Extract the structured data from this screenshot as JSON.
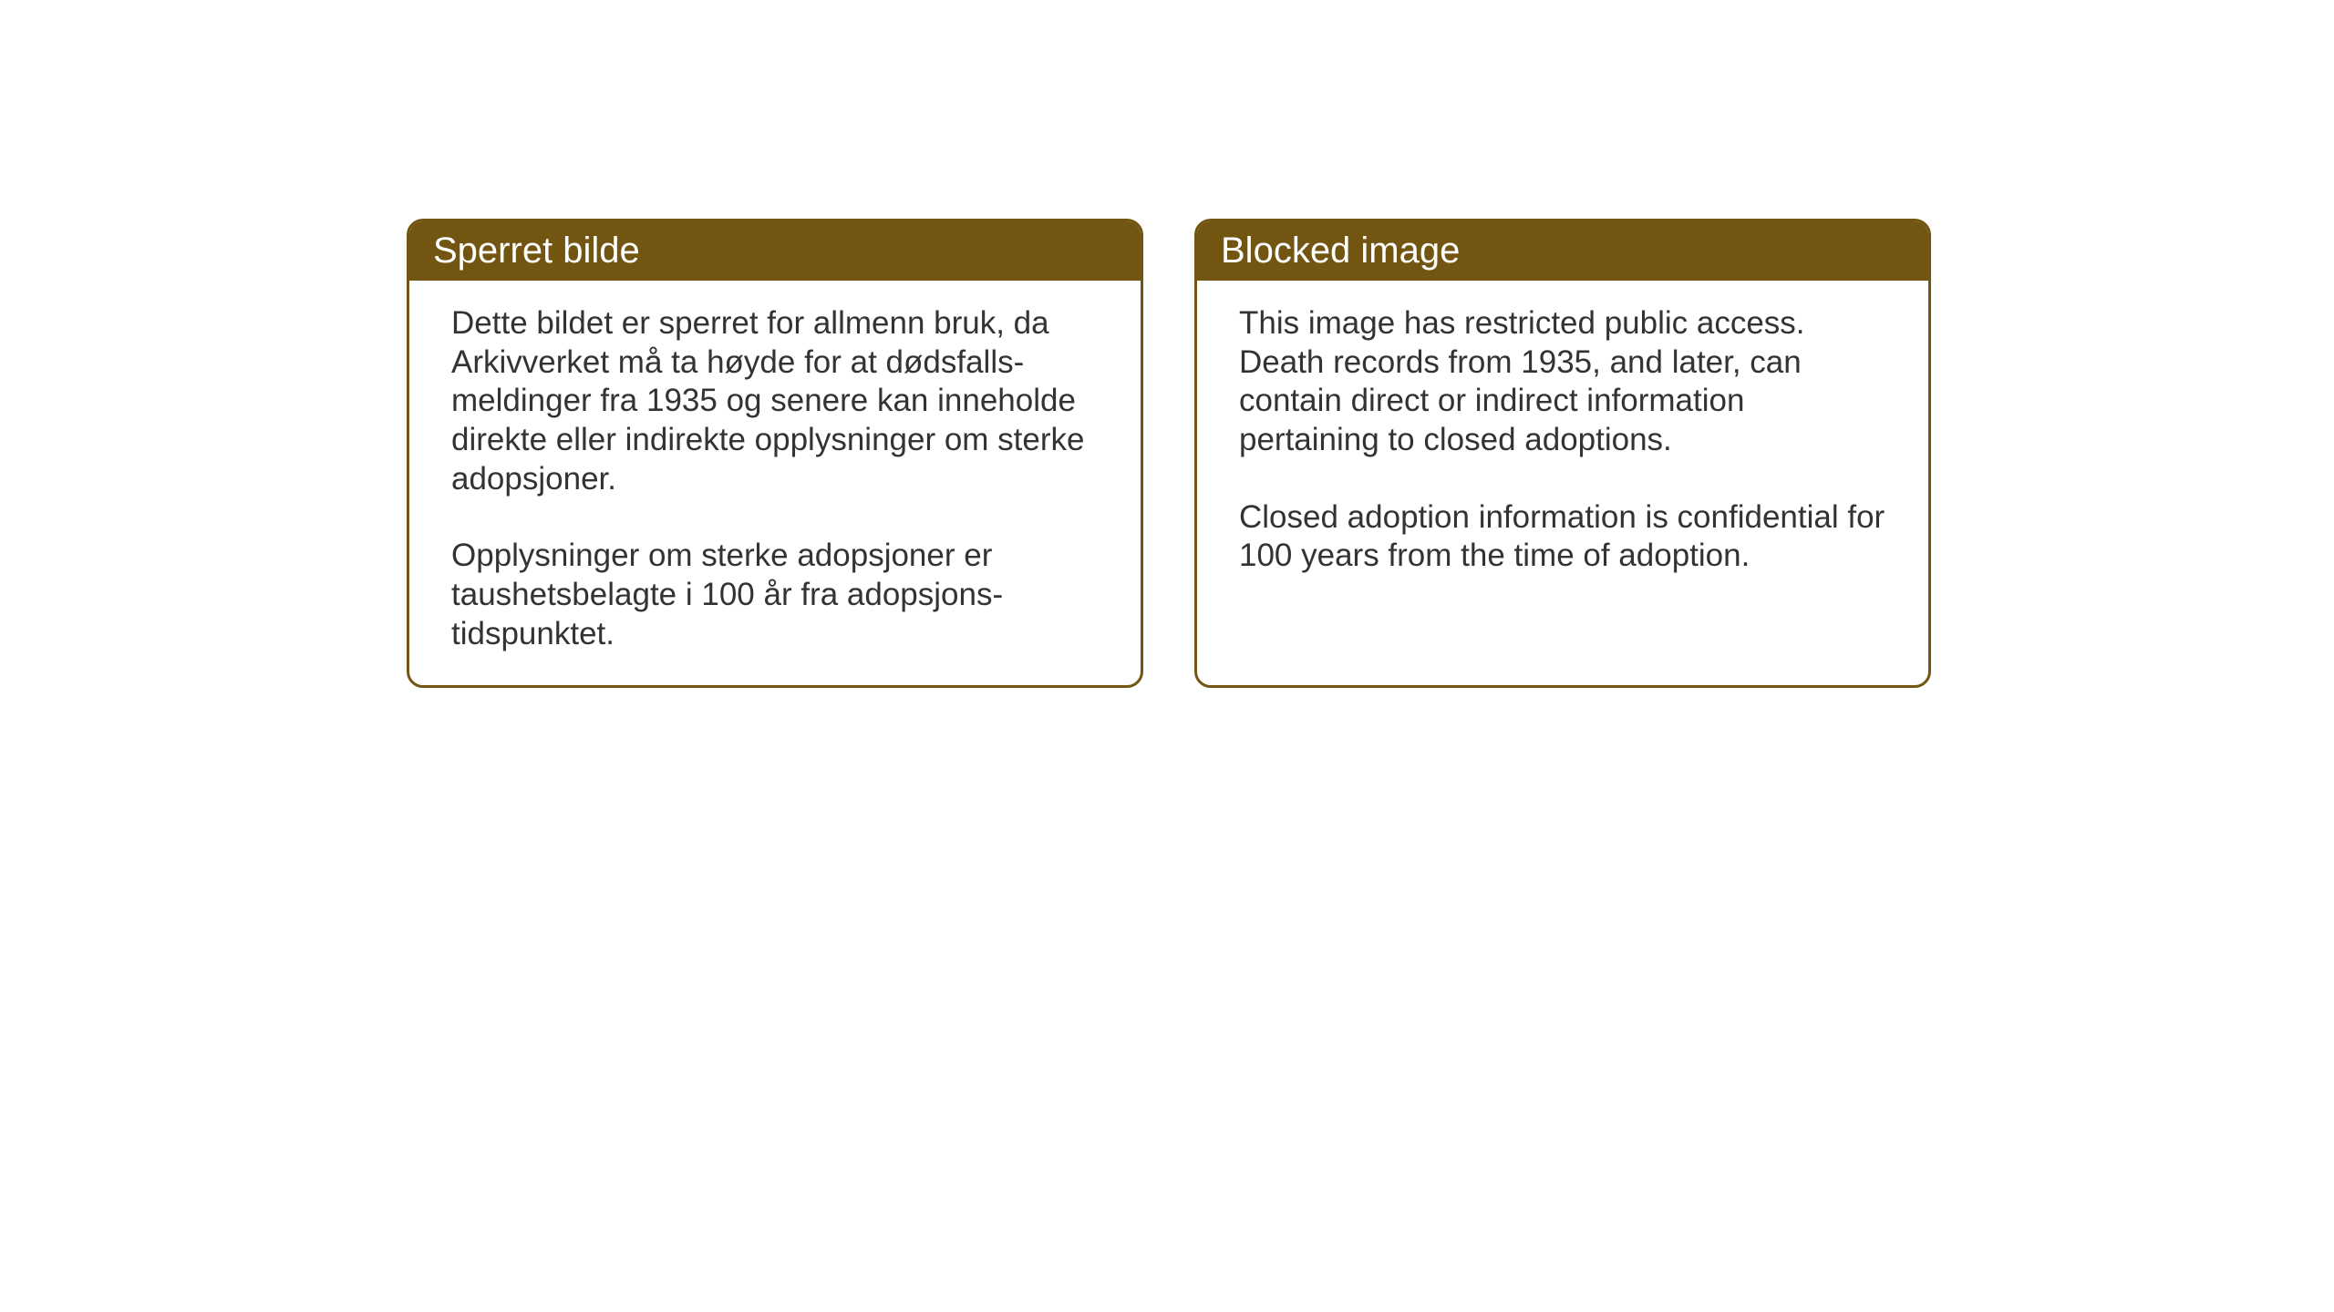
{
  "boxes": [
    {
      "header": "Sperret bilde",
      "paragraph1": "Dette bildet er sperret for allmenn bruk, da Arkivverket må ta høyde for at dødsfalls-meldinger fra 1935 og senere kan inneholde direkte eller indirekte opplysninger om sterke adopsjoner.",
      "paragraph2": "Opplysninger om sterke adopsjoner er taushetsbelagte i 100 år fra adopsjons-tidspunktet."
    },
    {
      "header": "Blocked image",
      "paragraph1": "This image has restricted public access. Death records from 1935, and later, can contain direct or indirect information pertaining to closed adoptions.",
      "paragraph2": "Closed adoption information is confidential for 100 years from the time of adoption."
    }
  ],
  "styling": {
    "header_bg_color": "#715511",
    "header_text_color": "#ffffff",
    "border_color": "#715511",
    "body_bg_color": "#ffffff",
    "body_text_color": "#333333",
    "header_fontsize": 40,
    "body_fontsize": 35,
    "border_radius": 18,
    "border_width": 3
  }
}
